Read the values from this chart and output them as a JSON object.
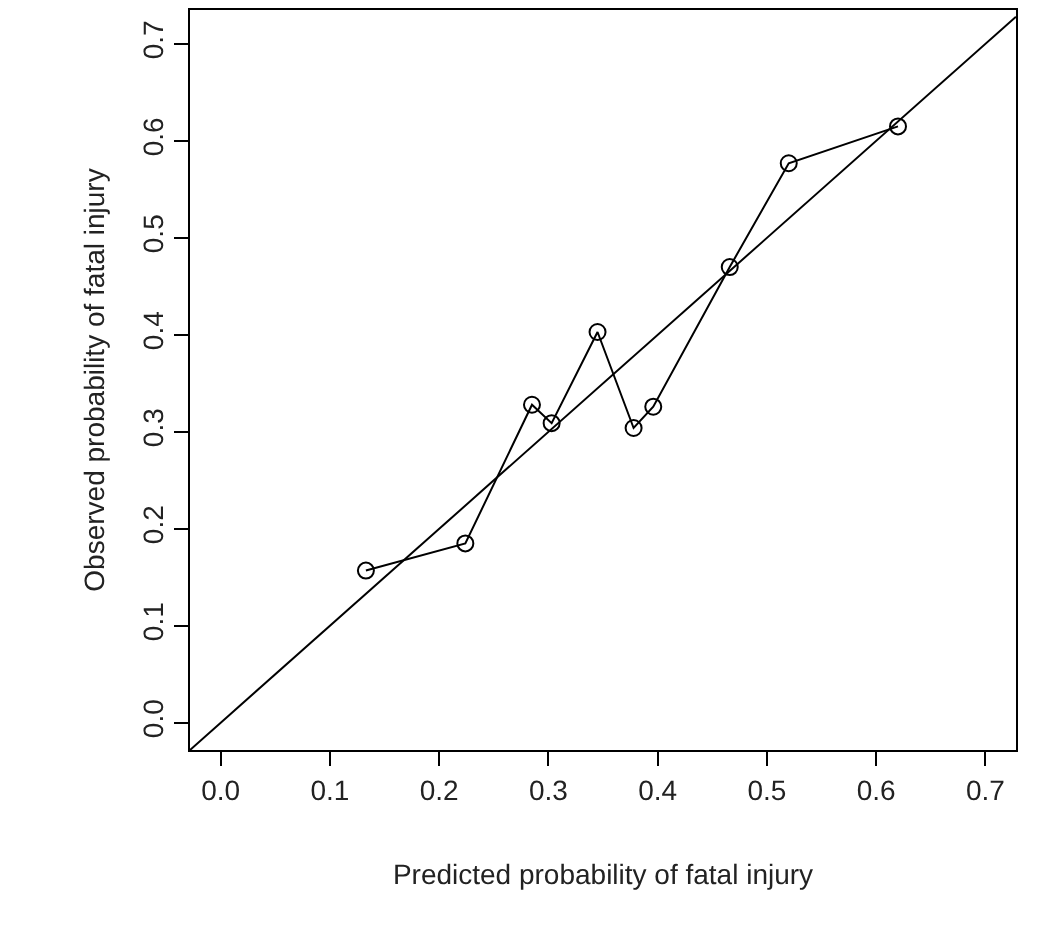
{
  "chart_data": {
    "type": "line",
    "xlabel": "Predicted probability of fatal injury",
    "ylabel": "Observed probability of fatal injury",
    "series": [
      {
        "color": "#000000",
        "marker": "circle",
        "x": [
          0.133,
          0.224,
          0.285,
          0.303,
          0.345,
          0.378,
          0.396,
          0.466,
          0.52,
          0.62
        ],
        "values": [
          0.157,
          0.185,
          0.328,
          0.309,
          0.403,
          0.304,
          0.326,
          0.47,
          0.577,
          0.615
        ]
      },
      {
        "type": "line",
        "color": "#000000",
        "marker": "none",
        "x": [
          -0.028,
          0.728
        ],
        "values": [
          -0.028,
          0.728
        ]
      }
    ],
    "xlim": [
      -0.028,
      0.728
    ],
    "ylim": [
      -0.028,
      0.735
    ],
    "xticks": [
      {
        "value": 0,
        "label": "0.0"
      },
      0.1,
      0.2,
      0.3,
      0.4,
      0.5,
      0.6,
      0.7
    ],
    "yticks": [
      {
        "value": 0,
        "label": "0.0"
      },
      0.1,
      0.2,
      0.3,
      0.4,
      0.5,
      0.6,
      0.7
    ],
    "line_style": "solid"
  }
}
